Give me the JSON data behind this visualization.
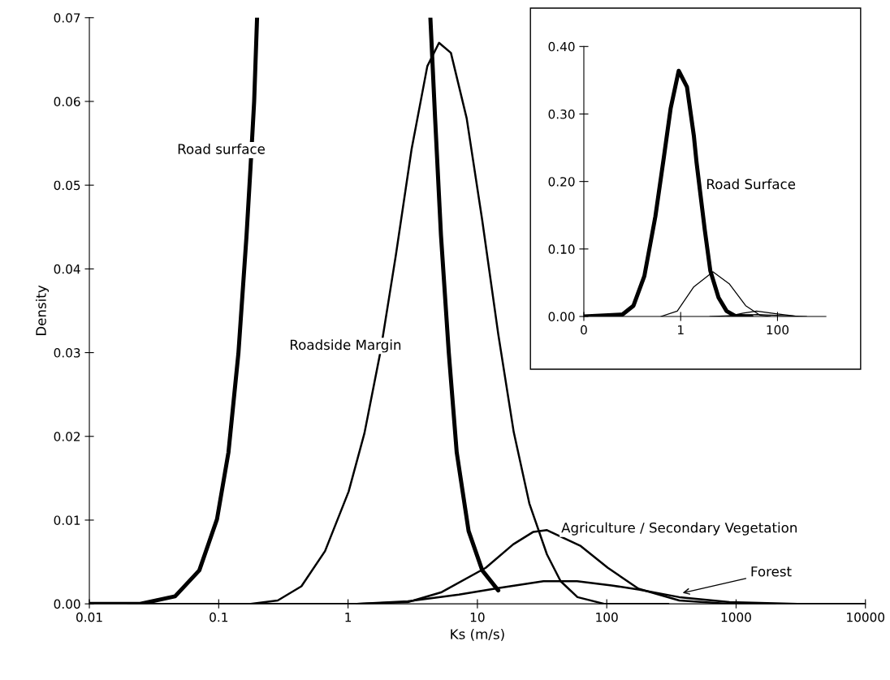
{
  "chart_data": [
    {
      "type": "line",
      "xlabel": "Ks (m/s)",
      "ylabel": "Density",
      "log": "x",
      "xlim": [
        0.01,
        10000
      ],
      "ylim": [
        0,
        0.07
      ],
      "xticks": [
        0.01,
        0.1,
        1,
        10,
        100,
        1000,
        10000
      ],
      "yticks": [
        {
          "value": 0,
          "label": "0.00"
        },
        {
          "value": 0.01,
          "label": "0.01"
        },
        {
          "value": 0.02,
          "label": "0.02"
        },
        {
          "value": 0.03,
          "label": "0.03"
        },
        {
          "value": 0.04,
          "label": "0.04"
        },
        {
          "value": 0.05,
          "label": "0.05"
        },
        {
          "value": 0.06,
          "label": "0.06"
        },
        {
          "value": 0.07,
          "label": "0.07"
        }
      ],
      "grid": false,
      "legend": false,
      "marker": "none",
      "line_style": "solid",
      "annotations": [
        {
          "text": "Forest",
          "x": 386,
          "y": 0.0013
        }
      ],
      "series": [
        {
          "name": "Road surface",
          "color": "#000000",
          "x": [
            0.01,
            0.0247,
            0.046,
            0.0708,
            0.097,
            0.119,
            0.142,
            0.164,
            0.176,
            0.188,
            0.198,
            1,
            4.33,
            4.71,
            5.23,
            6.01,
            6.92,
            8.55,
            10.9,
            14.5
          ],
          "values": [
            0,
            0,
            0.0009,
            0.004,
            0.0101,
            0.0181,
            0.0299,
            0.0439,
            0.052,
            0.06,
            0.07,
            null,
            0.07,
            0.058,
            0.044,
            0.03,
            0.0181,
            0.0087,
            0.004,
            0.0016
          ]
        },
        {
          "name": "Roadside Margin",
          "color": "#000000",
          "x": [
            0.1,
            0.176,
            0.286,
            0.436,
            0.664,
            1.01,
            1.34,
            1.77,
            2.34,
            3.1,
            4.1,
            5.05,
            6.24,
            8.26,
            10.9,
            14.5,
            19.1,
            25.2,
            34.5,
            44,
            59.4,
            95.6,
            300
          ],
          "values": [
            0,
            0,
            0.0004,
            0.0021,
            0.0063,
            0.0134,
            0.0204,
            0.0299,
            0.0416,
            0.0543,
            0.0642,
            0.067,
            0.0658,
            0.058,
            0.0458,
            0.0322,
            0.0205,
            0.012,
            0.0059,
            0.0027,
            0.0008,
            0,
            0
          ]
        },
        {
          "name": "Agriculture / Secondary Vegetation",
          "color": "#000000",
          "x": [
            1.17,
            2.9,
            5.3,
            11.6,
            18.9,
            27.1,
            34.5,
            63,
            102,
            176,
            364,
            890,
            2000
          ],
          "values": [
            0,
            0.0002,
            0.0014,
            0.0043,
            0.0071,
            0.0086,
            0.0088,
            0.0069,
            0.0043,
            0.0018,
            0.0004,
            0,
            0
          ]
        },
        {
          "color": "#000000",
          "x": [
            0.02,
            1.17,
            2.9,
            7.2,
            14.8,
            32.4,
            59,
            109,
            176,
            364,
            890,
            3000,
            10000
          ],
          "values": [
            0,
            0,
            0.0003,
            0.0011,
            0.0019,
            0.0027,
            0.0027,
            0.0022,
            0.0017,
            0.0008,
            0.0002,
            0,
            0
          ]
        }
      ]
    },
    {
      "type": "line",
      "log": "x",
      "xlim": [
        0.01,
        1000
      ],
      "ylim": [
        0,
        0.4
      ],
      "xticks": [
        {
          "value": 0.01,
          "label": "0"
        },
        1,
        100
      ],
      "yticks": [
        {
          "value": 0,
          "label": "0.00"
        },
        {
          "value": 0.1,
          "label": "0.10"
        },
        {
          "value": 0.2,
          "label": "0.20"
        },
        {
          "value": 0.3,
          "label": "0.30"
        },
        {
          "value": 0.4,
          "label": "0.40"
        }
      ],
      "grid": false,
      "legend": false,
      "marker": "none",
      "line_style": "solid",
      "series": [
        {
          "name": "Road Surface",
          "color": "#000000",
          "x": [
            0.01,
            0.063,
            0.106,
            0.178,
            0.3,
            0.45,
            0.62,
            0.91,
            1.35,
            1.87,
            2.13,
            3.15,
            4.09,
            6.06,
            8.9,
            13.2,
            29
          ],
          "values": [
            0,
            0.003,
            0.016,
            0.06,
            0.148,
            0.236,
            0.308,
            0.364,
            0.34,
            0.268,
            0.228,
            0.128,
            0.068,
            0.028,
            0.008,
            0.001,
            0
          ]
        },
        {
          "color": "#000000",
          "x": [
            0.39,
            0.85,
            1.87,
            4.65,
            10.2,
            22,
            43,
            72
          ],
          "values": [
            0,
            0.008,
            0.044,
            0.066,
            0.048,
            0.016,
            0.002,
            0
          ]
        },
        {
          "color": "#000000",
          "x": [
            8.9,
            19.6,
            37,
            93,
            205,
            265
          ],
          "values": [
            0,
            0.005,
            0.008,
            0.004,
            0.001,
            0
          ]
        },
        {
          "color": "#000000",
          "x": [
            4,
            37,
            400
          ],
          "values": [
            0,
            0.003,
            0
          ]
        }
      ]
    }
  ]
}
